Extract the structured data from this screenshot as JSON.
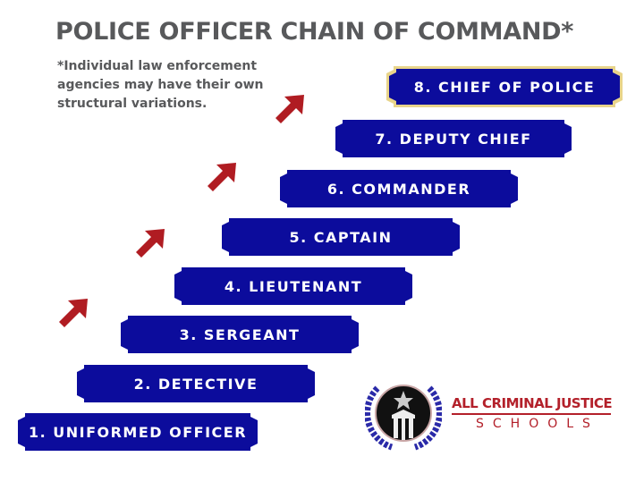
{
  "title": "POLICE OFFICER CHAIN OF COMMAND*",
  "note": "*Individual law enforcement agencies may have their own structural variations.",
  "ranks": [
    "1. UNIFORMED OFFICER",
    "2. DETECTIVE",
    "3. SERGEANT",
    "4. LIEUTENANT",
    "5. CAPTAIN",
    "6. COMMANDER",
    "7. DEPUTY CHIEF",
    "8. CHIEF OF POLICE"
  ],
  "colors": {
    "banner": "#0c0c9c",
    "arrow": "#b01c22",
    "highlight_border": "#e8d48a",
    "text_gray": "#58595b",
    "brand_red": "#b3202a"
  },
  "icons": [
    "arrow-up-right-icon"
  ],
  "logo": {
    "name": "ALL CRIMINAL JUSTICE",
    "sub": "SCHOOLS"
  }
}
